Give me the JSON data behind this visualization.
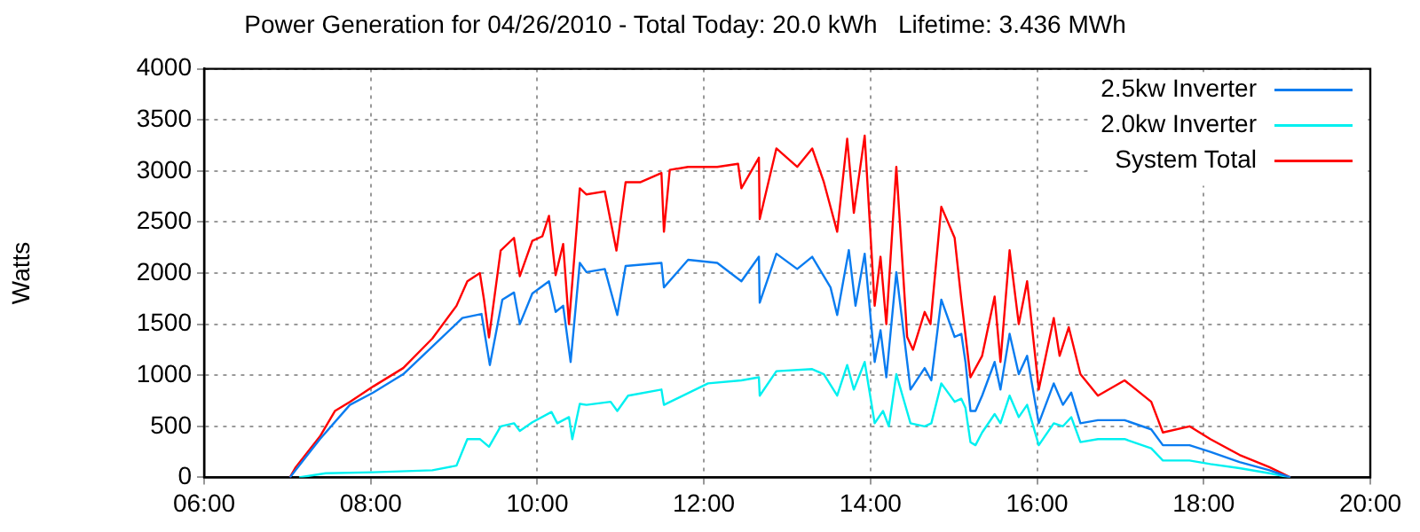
{
  "chart_data": {
    "type": "line",
    "title": "Power Generation for 04/26/2010 - Total Today: 20.0 kWh   Lifetime: 3.436 MWh",
    "ylabel": "Watts",
    "xlim": [
      6,
      20
    ],
    "xticks": [
      {
        "value": 6,
        "label": "06:00"
      },
      {
        "value": 8,
        "label": "08:00"
      },
      {
        "value": 10,
        "label": "10:00"
      },
      {
        "value": 12,
        "label": "12:00"
      },
      {
        "value": 14,
        "label": "14:00"
      },
      {
        "value": 16,
        "label": "16:00"
      },
      {
        "value": 18,
        "label": "18:00"
      },
      {
        "value": 20,
        "label": "20:00"
      }
    ],
    "ylim": [
      0,
      4000
    ],
    "yticks": [
      0,
      500,
      1000,
      1500,
      2000,
      2500,
      3000,
      3500,
      4000
    ],
    "grid": true,
    "legend": "top right",
    "series": [
      {
        "name": "2.5kw Inverter",
        "color": "#0a7cf0",
        "x": [
          7.03,
          7.39,
          7.75,
          8.03,
          8.39,
          8.74,
          9.1,
          9.33,
          9.43,
          9.58,
          9.72,
          9.79,
          9.94,
          10.14,
          10.22,
          10.31,
          10.4,
          10.51,
          10.59,
          10.81,
          10.96,
          11.06,
          11.49,
          11.52,
          11.81,
          12.16,
          12.45,
          12.66,
          12.67,
          12.87,
          13.12,
          13.3,
          13.52,
          13.6,
          13.74,
          13.82,
          13.93,
          14.05,
          14.12,
          14.19,
          14.31,
          14.48,
          14.65,
          14.73,
          14.85,
          15.01,
          15.09,
          15.14,
          15.2,
          15.26,
          15.34,
          15.49,
          15.56,
          15.67,
          15.78,
          15.88,
          16.02,
          16.2,
          16.31,
          16.41,
          16.52,
          16.73,
          17.05,
          17.37,
          17.51,
          17.83,
          18.08,
          18.43,
          18.79,
          19.04
        ],
        "values": [
          0,
          375,
          710,
          830,
          1010,
          1280,
          1560,
          1600,
          1100,
          1740,
          1810,
          1500,
          1800,
          1920,
          1620,
          1680,
          1130,
          2100,
          2010,
          2040,
          1590,
          2070,
          2100,
          1860,
          2130,
          2100,
          1920,
          2160,
          1710,
          2190,
          2040,
          2160,
          1860,
          1590,
          2225,
          1680,
          2190,
          1130,
          1440,
          980,
          2010,
          860,
          1070,
          950,
          1740,
          1375,
          1405,
          1130,
          650,
          650,
          800,
          1130,
          860,
          1405,
          1010,
          1190,
          530,
          920,
          710,
          830,
          530,
          560,
          560,
          470,
          315,
          315,
          250,
          150,
          70,
          0
        ]
      },
      {
        "name": "2.0kw Inverter",
        "color": "#00f0f0",
        "x": [
          7.14,
          7.46,
          8.03,
          8.74,
          9.03,
          9.16,
          9.31,
          9.42,
          9.56,
          9.72,
          9.79,
          9.94,
          10.17,
          10.24,
          10.38,
          10.42,
          10.51,
          10.59,
          10.88,
          10.96,
          11.09,
          11.49,
          11.52,
          12.05,
          12.45,
          12.66,
          12.67,
          12.87,
          13.3,
          13.44,
          13.6,
          13.72,
          13.8,
          13.93,
          14.05,
          14.15,
          14.22,
          14.31,
          14.48,
          14.65,
          14.73,
          14.85,
          15.01,
          15.09,
          15.14,
          15.2,
          15.26,
          15.34,
          15.49,
          15.56,
          15.67,
          15.78,
          15.88,
          16.02,
          16.2,
          16.31,
          16.41,
          16.52,
          16.73,
          17.05,
          17.37,
          17.51,
          17.83,
          18.08,
          18.43,
          18.79,
          19.04
        ],
        "values": [
          0,
          40,
          50,
          70,
          115,
          375,
          375,
          300,
          500,
          530,
          455,
          540,
          640,
          530,
          590,
          375,
          720,
          710,
          740,
          650,
          800,
          860,
          710,
          920,
          950,
          980,
          800,
          1040,
          1060,
          1010,
          800,
          1100,
          860,
          1130,
          530,
          650,
          500,
          1010,
          530,
          500,
          530,
          920,
          740,
          770,
          680,
          345,
          315,
          440,
          620,
          530,
          800,
          590,
          710,
          315,
          530,
          500,
          590,
          345,
          375,
          375,
          285,
          165,
          165,
          130,
          90,
          40,
          0
        ]
      },
      {
        "name": "System Total",
        "color": "#ff0000",
        "x": [
          7.03,
          7.1,
          7.39,
          7.57,
          7.75,
          8.03,
          8.39,
          8.74,
          9.03,
          9.16,
          9.31,
          9.36,
          9.42,
          9.56,
          9.72,
          9.79,
          9.94,
          10.06,
          10.14,
          10.22,
          10.31,
          10.38,
          10.51,
          10.59,
          10.81,
          10.95,
          11.06,
          11.24,
          11.49,
          11.52,
          11.59,
          11.81,
          12.16,
          12.41,
          12.45,
          12.66,
          12.67,
          12.87,
          13.12,
          13.3,
          13.44,
          13.6,
          13.72,
          13.8,
          13.93,
          14.05,
          14.12,
          14.19,
          14.31,
          14.44,
          14.51,
          14.65,
          14.72,
          14.85,
          15.01,
          15.09,
          15.2,
          15.34,
          15.49,
          15.56,
          15.67,
          15.78,
          15.88,
          16.02,
          16.2,
          16.27,
          16.38,
          16.52,
          16.73,
          17.05,
          17.37,
          17.51,
          17.83,
          18.08,
          18.43,
          18.79,
          19.04
        ],
        "values": [
          0,
          100,
          400,
          650,
          740,
          890,
          1070,
          1360,
          1680,
          1920,
          2000,
          1740,
          1370,
          2220,
          2345,
          1970,
          2315,
          2360,
          2560,
          1980,
          2285,
          1500,
          2830,
          2770,
          2800,
          2220,
          2890,
          2890,
          2980,
          2405,
          3010,
          3040,
          3040,
          3070,
          2830,
          3130,
          2530,
          3220,
          3040,
          3220,
          2890,
          2405,
          3315,
          2590,
          3345,
          1680,
          2160,
          1500,
          3040,
          1375,
          1250,
          1620,
          1500,
          2650,
          2345,
          1740,
          980,
          1190,
          1770,
          1130,
          2225,
          1500,
          1920,
          860,
          1560,
          1190,
          1470,
          1010,
          800,
          950,
          740,
          440,
          500,
          375,
          220,
          100,
          0
        ]
      }
    ]
  }
}
